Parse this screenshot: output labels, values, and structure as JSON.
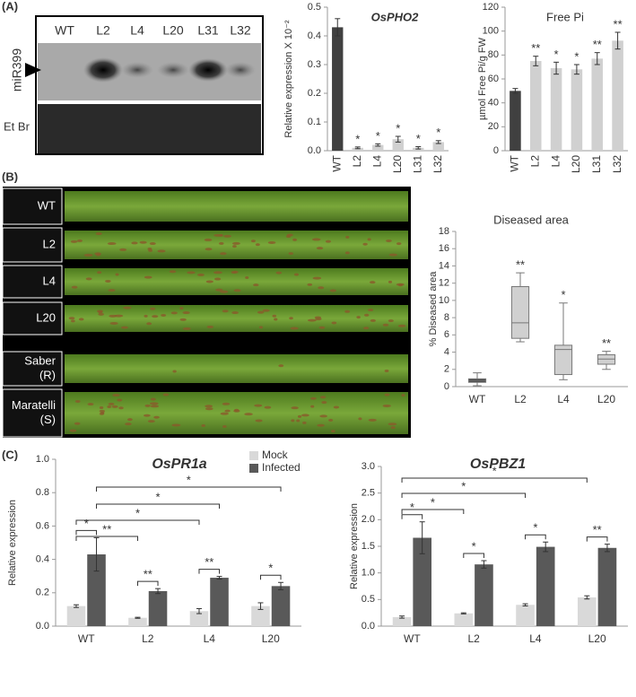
{
  "panel_labels": [
    "(A)",
    "(B)",
    "(C)"
  ],
  "blot": {
    "lanes": [
      "WT",
      "L2",
      "L4",
      "L20",
      "L31",
      "L32"
    ],
    "probe": "miR399",
    "stain": "Et Br"
  },
  "leaf_labels": [
    [
      "WT"
    ],
    [
      "L2"
    ],
    [
      "L4"
    ],
    [
      "L20"
    ],
    [
      "Saber",
      "(R)"
    ],
    [
      "Maratelli",
      "(S)"
    ]
  ],
  "chart_data": [
    {
      "type": "bar",
      "title": "OsPHO2",
      "ylabel": "Relative expression X 10⁻²",
      "categories": [
        "WT",
        "L2",
        "L4",
        "L20",
        "L31",
        "L32"
      ],
      "values": [
        0.43,
        0.01,
        0.02,
        0.04,
        0.01,
        0.03
      ],
      "errors": [
        0.03,
        0.003,
        0.004,
        0.01,
        0.004,
        0.005
      ],
      "annotations": [
        null,
        "*",
        "*",
        "*",
        "*",
        "*"
      ],
      "colors": [
        "#404040",
        "#d0d0d0",
        "#d0d0d0",
        "#d0d0d0",
        "#d0d0d0",
        "#d0d0d0"
      ],
      "ylim": [
        0,
        0.5
      ],
      "yticks": [
        {
          "value": 0,
          "label": "0.0"
        },
        0.1,
        0.2,
        0.3,
        0.4,
        0.5
      ]
    },
    {
      "type": "bar",
      "title": "Free Pi",
      "ylabel": "µmol Free Pi/g FW",
      "categories": [
        "WT",
        "L2",
        "L4",
        "L20",
        "L31",
        "L32"
      ],
      "values": [
        50,
        75,
        69,
        68,
        77,
        92
      ],
      "errors": [
        2,
        4,
        5,
        4,
        5,
        7
      ],
      "annotations": [
        null,
        "**",
        "*",
        "*",
        "**",
        "**"
      ],
      "colors": [
        "#404040",
        "#d0d0d0",
        "#d0d0d0",
        "#d0d0d0",
        "#d0d0d0",
        "#d0d0d0"
      ],
      "ylim": [
        0,
        120
      ],
      "yticks": [
        0,
        20,
        40,
        60,
        80,
        100,
        120
      ]
    },
    {
      "type": "box",
      "title": "Diseased  area",
      "ylabel": "% Diseased area",
      "categories": [
        "WT",
        "L2",
        "L4",
        "L20"
      ],
      "stats": [
        {
          "min": 0.1,
          "q1": 0.5,
          "median": 0.7,
          "q3": 0.9,
          "max": 1.6
        },
        {
          "min": 5.2,
          "q1": 5.6,
          "median": 7.4,
          "q3": 11.6,
          "max": 13.2
        },
        {
          "min": 0.8,
          "q1": 1.4,
          "median": 4.3,
          "q3": 4.8,
          "max": 9.7
        },
        {
          "min": 2.0,
          "q1": 2.6,
          "median": 3.2,
          "q3": 3.7,
          "max": 4.1
        }
      ],
      "annotations": [
        null,
        "**",
        "*",
        "**"
      ],
      "colors": [
        "#404040",
        "#d0d0d0",
        "#d0d0d0",
        "#d0d0d0"
      ],
      "ylim": [
        0,
        18
      ],
      "yticks": [
        0,
        2,
        4,
        6,
        8,
        10,
        12,
        14,
        16,
        18
      ]
    },
    {
      "type": "grouped",
      "title": "OsPR1a",
      "ylabel": "Relative expression",
      "categories": [
        "WT",
        "L2",
        "L4",
        "L20"
      ],
      "series": [
        {
          "name": "Mock",
          "color": "#d9d9d9",
          "values": [
            0.12,
            0.05,
            0.09,
            0.12
          ],
          "errors": [
            0.008,
            0.003,
            0.015,
            0.02
          ]
        },
        {
          "name": "Infected",
          "color": "#595959",
          "values": [
            0.43,
            0.21,
            0.29,
            0.24
          ],
          "errors": [
            0.1,
            0.015,
            0.008,
            0.022
          ]
        }
      ],
      "pair_annotations": [
        "*",
        "**",
        "**",
        "*"
      ],
      "bracket_annotations": [
        "**",
        "*",
        "*",
        "*"
      ],
      "ylim": [
        0,
        1
      ],
      "yticks": [
        {
          "value": 0,
          "label": "0.0"
        },
        0.2,
        0.4,
        0.6,
        0.8,
        {
          "value": 1,
          "label": "1.0"
        }
      ]
    },
    {
      "type": "grouped",
      "title": "OsPBZ1",
      "ylabel": "Relative expression",
      "categories": [
        "WT",
        "L2",
        "L4",
        "L20"
      ],
      "series": [
        {
          "color": "#d9d9d9",
          "values": [
            0.17,
            0.24,
            0.4,
            0.54
          ],
          "errors": [
            0.02,
            0.01,
            0.02,
            0.03
          ]
        },
        {
          "color": "#595959",
          "values": [
            1.66,
            1.16,
            1.49,
            1.47
          ],
          "errors": [
            0.3,
            0.07,
            0.09,
            0.07
          ]
        }
      ],
      "pair_annotations": [
        "*",
        "*",
        "*",
        "**"
      ],
      "bracket_annotations": [
        "*",
        "*",
        "*"
      ],
      "ylim": [
        0,
        3
      ],
      "yticks": [
        {
          "value": 0,
          "label": "0.0"
        },
        0.5,
        {
          "value": 1,
          "label": "1.0"
        },
        1.5,
        {
          "value": 2,
          "label": "2.0"
        },
        2.5,
        {
          "value": 3,
          "label": "3.0"
        }
      ]
    }
  ]
}
